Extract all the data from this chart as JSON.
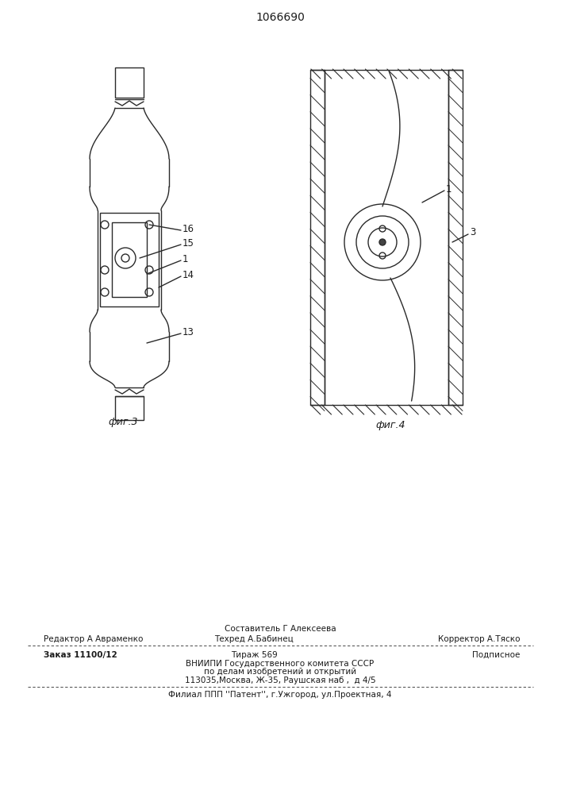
{
  "title": "1066690",
  "title_fontsize": 10,
  "bg_color": "#ffffff",
  "fig3_label": "фиг.3",
  "fig4_label": "фиг.4",
  "line_color": "#2a2a2a",
  "text_color": "#1a1a1a"
}
